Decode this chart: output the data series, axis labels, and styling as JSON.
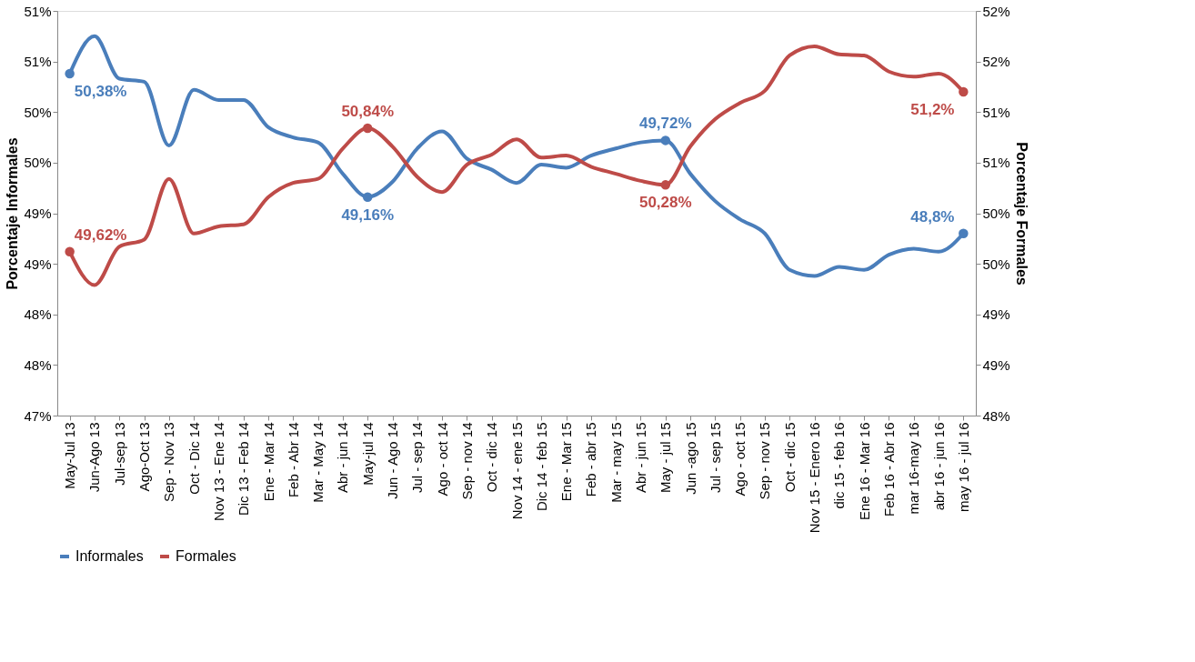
{
  "chart_data": {
    "type": "line",
    "categories": [
      "May-Jul 13",
      "Jun-Ago 13",
      "Jul-sep 13",
      "Ago-Oct 13",
      "Sep - Nov 13",
      "Oct - Dic 14",
      "Nov 13 - Ene 14",
      "Dic 13 - Feb 14",
      "Ene - Mar 14",
      "Feb - Abr 14",
      "Mar - May 14",
      "Abr - jun 14",
      "May-jul 14",
      "Jun - Ago 14",
      "Jul - sep 14",
      "Ago - oct 14",
      "Sep - nov 14",
      "Oct - dic 14",
      "Nov 14 - ene 15",
      "Dic 14 - feb 15",
      "Ene - Mar 15",
      "Feb - abr 15",
      "Mar - may 15",
      "Abr - jun 15",
      "May - jul 15",
      "Jun -ago 15",
      "Jul - sep 15",
      "Ago - oct 15",
      "Sep - nov 15",
      "Oct - dic 15",
      "Nov 15 - Enero 16",
      "dic 15 - feb 16",
      "Ene 16 - Mar 16",
      "Feb 16 - Abr 16",
      "mar 16-may 16",
      "abr 16 - jun 16",
      "may 16 - jul 16"
    ],
    "series": [
      {
        "name": "Informales",
        "color": "#4a7ebb",
        "values": [
          50.38,
          50.75,
          50.33,
          50.3,
          49.67,
          50.22,
          50.12,
          50.12,
          49.85,
          49.75,
          49.7,
          49.39,
          49.16,
          49.31,
          49.64,
          49.81,
          49.54,
          49.43,
          49.3,
          49.48,
          49.45,
          49.57,
          49.64,
          49.7,
          49.72,
          49.39,
          49.12,
          48.94,
          48.8,
          48.44,
          48.38,
          48.47,
          48.44,
          48.59,
          48.65,
          48.62,
          48.8
        ],
        "value_labels": [
          "50,38%",
          null,
          null,
          null,
          null,
          null,
          null,
          null,
          null,
          null,
          null,
          null,
          "49,16%",
          null,
          null,
          null,
          null,
          null,
          null,
          null,
          null,
          null,
          null,
          null,
          "49,72%",
          null,
          null,
          null,
          null,
          null,
          null,
          null,
          null,
          null,
          null,
          null,
          "48,8%"
        ]
      },
      {
        "name": "Formales",
        "color": "#be4b48",
        "axis": "y2",
        "values": [
          49.62,
          49.29,
          49.67,
          49.74,
          50.34,
          49.8,
          49.87,
          49.89,
          50.16,
          50.3,
          50.34,
          50.64,
          50.84,
          50.66,
          50.36,
          50.21,
          50.48,
          50.58,
          50.73,
          50.55,
          50.57,
          50.46,
          50.39,
          50.32,
          50.28,
          50.66,
          50.93,
          51.09,
          51.21,
          51.56,
          51.65,
          51.57,
          51.56,
          51.4,
          51.35,
          51.38,
          51.2
        ],
        "value_labels": [
          "49,62%",
          null,
          null,
          null,
          null,
          null,
          null,
          null,
          null,
          null,
          null,
          null,
          "50,84%",
          null,
          null,
          null,
          null,
          null,
          null,
          null,
          null,
          null,
          null,
          null,
          "50,28%",
          null,
          null,
          null,
          null,
          null,
          null,
          null,
          null,
          null,
          null,
          null,
          "51,2%"
        ]
      }
    ],
    "ylabel": "Porcentaje Informales",
    "y2label": "Porcentaje Formales",
    "ylim": [
      47,
      51
    ],
    "yticks": [
      {
        "value": 47,
        "label": "47%"
      },
      {
        "value": 47.5,
        "label": "48%"
      },
      {
        "value": 48,
        "label": "48%"
      },
      {
        "value": 48.5,
        "label": "49%"
      },
      {
        "value": 49,
        "label": "49%"
      },
      {
        "value": 49.5,
        "label": "50%"
      },
      {
        "value": 50,
        "label": "50%"
      },
      {
        "value": 50.5,
        "label": "51%"
      },
      {
        "value": 51,
        "label": "51%"
      }
    ],
    "y2lim": [
      48,
      52
    ],
    "y2ticks": [
      {
        "value": 48,
        "label": "48%"
      },
      {
        "value": 48.5,
        "label": "49%"
      },
      {
        "value": 49,
        "label": "49%"
      },
      {
        "value": 49.5,
        "label": "50%"
      },
      {
        "value": 50,
        "label": "50%"
      },
      {
        "value": 50.5,
        "label": "51%"
      },
      {
        "value": 51,
        "label": "51%"
      },
      {
        "value": 51.5,
        "label": "52%"
      },
      {
        "value": 52,
        "label": "52%"
      }
    ],
    "grid": false,
    "legend": "bottom",
    "line_style": "solid"
  }
}
